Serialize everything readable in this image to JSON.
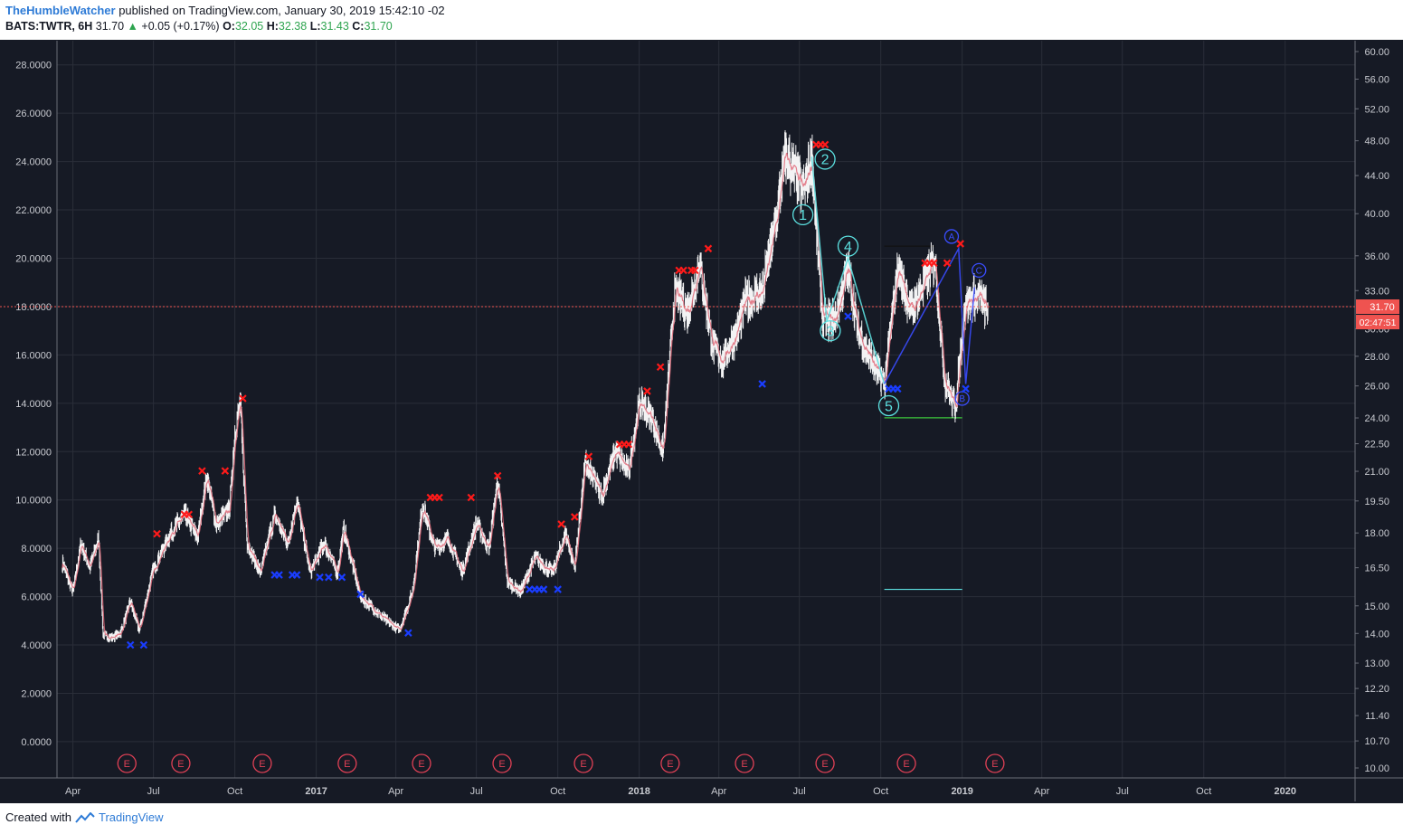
{
  "header": {
    "author": "TheHumbleWatcher",
    "published_text": " published on TradingView.com, January 30, 2019 15:42:10 -02",
    "symbol": "BATS:TWTR, 6H",
    "last": "31.70",
    "up_arrow": "▲",
    "change": "+0.05 (+0.17%)",
    "o_label": "O:",
    "o_value": "32.05",
    "h_label": "H:",
    "h_value": "32.38",
    "l_label": "L:",
    "l_value": "31.43",
    "c_label": "C:",
    "c_value": "31.70"
  },
  "footer": {
    "created_with": "Created with",
    "brand": "TradingView"
  },
  "colors": {
    "background": "#161a25",
    "grid": "#2a2e39",
    "candle": "#ffffff",
    "ma": "#e06b7a",
    "sell_marker": "#ff1a1a",
    "buy_marker": "#1a3dff",
    "wave_cyan": "#5ce0e0",
    "wave_blue": "#3a4dff",
    "price_label": "#ef5350",
    "earnings": "#e04055"
  },
  "chart_data": {
    "type": "candlestick",
    "symbol": "BATS:TWTR",
    "interval": "6H",
    "x_labels": [
      "Apr",
      "Jul",
      "Oct",
      "2017",
      "Apr",
      "Jul",
      "Oct",
      "2018",
      "Apr",
      "Jul",
      "Oct",
      "2019",
      "Apr",
      "Jul",
      "Oct",
      "2020"
    ],
    "left_axis_ticks": [
      "28.0000",
      "26.0000",
      "24.0000",
      "22.0000",
      "20.0000",
      "18.0000",
      "16.0000",
      "14.0000",
      "12.0000",
      "10.0000",
      "8.0000",
      "6.0000",
      "4.0000",
      "2.0000",
      "0.0000"
    ],
    "right_axis_ticks": [
      "60.00",
      "56.00",
      "52.00",
      "48.00",
      "44.00",
      "40.00",
      "36.00",
      "33.00",
      "30.00",
      "28.00",
      "26.00",
      "24.00",
      "22.50",
      "21.00",
      "19.50",
      "18.00",
      "16.50",
      "15.00",
      "14.00",
      "13.00",
      "12.20",
      "11.40",
      "10.70",
      "10.00"
    ],
    "ylim_left": [
      -1.5,
      29
    ],
    "right_scale": "log",
    "ylim_right": [
      10,
      60
    ],
    "current_price": "31.70",
    "countdown": "02:47:51",
    "oscillator_path": [
      [
        "2016-03-20",
        7.4
      ],
      [
        "2016-04-01",
        6.2
      ],
      [
        "2016-04-10",
        8.2
      ],
      [
        "2016-04-20",
        7.2
      ],
      [
        "2016-04-30",
        8.4
      ],
      [
        "2016-05-05",
        4.4
      ],
      [
        "2016-05-15",
        4.3
      ],
      [
        "2016-05-25",
        4.5
      ],
      [
        "2016-06-05",
        5.8
      ],
      [
        "2016-06-15",
        4.6
      ],
      [
        "2016-06-30",
        7.0
      ],
      [
        "2016-07-20",
        8.6
      ],
      [
        "2016-08-05",
        9.4
      ],
      [
        "2016-08-20",
        8.5
      ],
      [
        "2016-08-30",
        11.0
      ],
      [
        "2016-09-10",
        9.0
      ],
      [
        "2016-09-25",
        9.6
      ],
      [
        "2016-10-01",
        12.8
      ],
      [
        "2016-10-07",
        14.0
      ],
      [
        "2016-10-15",
        8.2
      ],
      [
        "2016-10-30",
        7.0
      ],
      [
        "2016-11-15",
        9.4
      ],
      [
        "2016-11-30",
        8.2
      ],
      [
        "2016-12-10",
        10.0
      ],
      [
        "2016-12-25",
        7.0
      ],
      [
        "2017-01-10",
        8.2
      ],
      [
        "2017-01-25",
        7.0
      ],
      [
        "2017-02-01",
        8.8
      ],
      [
        "2017-02-20",
        6.0
      ],
      [
        "2017-03-15",
        5.2
      ],
      [
        "2017-04-05",
        4.6
      ],
      [
        "2017-04-20",
        6.2
      ],
      [
        "2017-05-01",
        9.8
      ],
      [
        "2017-05-15",
        8.0
      ],
      [
        "2017-05-30",
        8.4
      ],
      [
        "2017-06-15",
        7.0
      ],
      [
        "2017-07-01",
        9.0
      ],
      [
        "2017-07-15",
        8.0
      ],
      [
        "2017-07-25",
        10.8
      ],
      [
        "2017-08-05",
        6.6
      ],
      [
        "2017-08-20",
        6.2
      ],
      [
        "2017-09-05",
        7.6
      ],
      [
        "2017-09-25",
        7.0
      ],
      [
        "2017-10-10",
        8.6
      ],
      [
        "2017-10-20",
        7.2
      ],
      [
        "2017-11-01",
        11.5
      ],
      [
        "2017-11-20",
        10.2
      ],
      [
        "2017-12-05",
        12.0
      ],
      [
        "2017-12-20",
        11.2
      ],
      [
        "2018-01-01",
        14.0
      ],
      [
        "2018-01-15",
        13.4
      ],
      [
        "2018-01-28",
        12.0
      ],
      [
        "2018-02-10",
        18.6
      ],
      [
        "2018-02-25",
        17.8
      ],
      [
        "2018-03-10",
        19.8
      ],
      [
        "2018-03-25",
        16.4
      ],
      [
        "2018-04-05",
        15.8
      ],
      [
        "2018-04-20",
        16.8
      ],
      [
        "2018-05-01",
        18.2
      ],
      [
        "2018-05-20",
        18.6
      ],
      [
        "2018-06-05",
        21.6
      ],
      [
        "2018-06-15",
        24.3
      ],
      [
        "2018-06-25",
        23.5
      ],
      [
        "2018-07-05",
        22.8
      ],
      [
        "2018-07-15",
        24.1
      ],
      [
        "2018-07-27",
        17.6
      ],
      [
        "2018-08-10",
        17.4
      ],
      [
        "2018-08-25",
        19.6
      ],
      [
        "2018-09-05",
        17.0
      ],
      [
        "2018-09-20",
        15.8
      ],
      [
        "2018-10-05",
        14.8
      ],
      [
        "2018-10-20",
        19.6
      ],
      [
        "2018-11-05",
        17.8
      ],
      [
        "2018-11-20",
        19.0
      ],
      [
        "2018-12-01",
        20.0
      ],
      [
        "2018-12-12",
        15.0
      ],
      [
        "2018-12-24",
        13.8
      ],
      [
        "2019-01-05",
        18.2
      ],
      [
        "2019-01-20",
        18.4
      ],
      [
        "2019-01-30",
        17.8
      ]
    ],
    "sell_signals": [
      [
        "2016-07-05",
        8.6
      ],
      [
        "2016-08-05",
        9.4
      ],
      [
        "2016-08-10",
        9.4
      ],
      [
        "2016-08-25",
        11.2
      ],
      [
        "2016-09-20",
        11.2
      ],
      [
        "2016-10-10",
        14.2
      ],
      [
        "2017-05-10",
        10.1
      ],
      [
        "2017-05-15",
        10.1
      ],
      [
        "2017-05-20",
        10.1
      ],
      [
        "2017-06-25",
        10.1
      ],
      [
        "2017-07-25",
        11.0
      ],
      [
        "2017-10-05",
        9.0
      ],
      [
        "2017-10-20",
        9.3
      ],
      [
        "2017-11-05",
        11.8
      ],
      [
        "2017-12-10",
        12.3
      ],
      [
        "2017-12-15",
        12.3
      ],
      [
        "2017-12-20",
        12.3
      ],
      [
        "2018-01-10",
        14.5
      ],
      [
        "2018-01-25",
        15.5
      ],
      [
        "2018-02-15",
        19.5
      ],
      [
        "2018-02-20",
        19.5
      ],
      [
        "2018-03-01",
        19.5
      ],
      [
        "2018-03-05",
        19.5
      ],
      [
        "2018-03-20",
        20.4
      ],
      [
        "2018-07-20",
        24.7
      ],
      [
        "2018-07-25",
        24.7
      ],
      [
        "2018-07-30",
        24.7
      ],
      [
        "2018-11-20",
        19.8
      ],
      [
        "2018-11-25",
        19.8
      ],
      [
        "2018-11-30",
        19.8
      ],
      [
        "2018-12-15",
        19.8
      ],
      [
        "2018-12-30",
        20.6
      ]
    ],
    "buy_signals": [
      [
        "2016-06-05",
        4.0
      ],
      [
        "2016-06-20",
        4.0
      ],
      [
        "2016-11-15",
        6.9
      ],
      [
        "2016-11-20",
        6.9
      ],
      [
        "2016-12-05",
        6.9
      ],
      [
        "2016-12-10",
        6.9
      ],
      [
        "2017-01-05",
        6.8
      ],
      [
        "2017-01-15",
        6.8
      ],
      [
        "2017-01-30",
        6.8
      ],
      [
        "2017-02-20",
        6.1
      ],
      [
        "2017-04-15",
        4.5
      ],
      [
        "2017-08-30",
        6.3
      ],
      [
        "2017-09-05",
        6.3
      ],
      [
        "2017-09-10",
        6.3
      ],
      [
        "2017-09-15",
        6.3
      ],
      [
        "2017-10-01",
        6.3
      ],
      [
        "2018-05-20",
        14.8
      ],
      [
        "2018-08-25",
        17.6
      ],
      [
        "2018-10-10",
        14.6
      ],
      [
        "2018-10-15",
        14.6
      ],
      [
        "2018-10-20",
        14.6
      ],
      [
        "2019-01-05",
        14.6
      ]
    ],
    "elliott_impulse": {
      "color": "cyan",
      "labels": [
        {
          "text": "1",
          "x": "2018-07-05",
          "y": 21.8
        },
        {
          "text": "2",
          "x": "2018-07-30",
          "y": 24.1
        },
        {
          "text": "3",
          "x": "2018-08-05",
          "y": 17.0
        },
        {
          "text": "4",
          "x": "2018-08-25",
          "y": 20.5
        },
        {
          "text": "5",
          "x": "2018-10-10",
          "y": 13.9
        }
      ],
      "line": [
        [
          "2018-07-15",
          24.2
        ],
        [
          "2018-08-01",
          17.4
        ],
        [
          "2018-08-25",
          20.0
        ],
        [
          "2018-10-05",
          14.8
        ]
      ]
    },
    "elliott_correction": {
      "color": "blue",
      "labels": [
        {
          "text": "A",
          "x": "2018-12-20",
          "y": 20.9
        },
        {
          "text": "B",
          "x": "2019-01-01",
          "y": 14.2
        },
        {
          "text": "C",
          "x": "2019-01-20",
          "y": 19.5
        }
      ],
      "line": [
        [
          "2018-10-05",
          14.8
        ],
        [
          "2018-12-28",
          20.4
        ],
        [
          "2019-01-05",
          14.8
        ],
        [
          "2019-01-15",
          18.8
        ]
      ]
    },
    "horizontal_lines": [
      {
        "color": "green",
        "y": 13.4,
        "x0": "2018-10-05",
        "x1": "2019-01-01"
      },
      {
        "color": "cyan",
        "y": 6.3,
        "x0": "2018-10-05",
        "x1": "2019-01-01"
      },
      {
        "color": "dark",
        "y": 20.5,
        "x0": "2018-10-05",
        "x1": "2018-12-01"
      }
    ],
    "earnings_markers": {
      "label": "E",
      "dates": [
        "2016-06-01",
        "2016-08-01",
        "2016-11-01",
        "2017-02-05",
        "2017-04-30",
        "2017-07-30",
        "2017-10-30",
        "2018-02-05",
        "2018-04-30",
        "2018-07-30",
        "2018-10-30",
        "2019-02-07"
      ]
    }
  }
}
